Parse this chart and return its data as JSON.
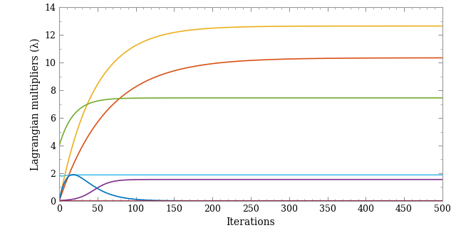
{
  "xlabel": "Iterations",
  "ylabel": "Lagrangian multipliers (λ)",
  "xlim": [
    0,
    500
  ],
  "ylim": [
    0,
    14
  ],
  "yticks": [
    0,
    2,
    4,
    6,
    8,
    10,
    12,
    14
  ],
  "xticks": [
    0,
    50,
    100,
    150,
    200,
    250,
    300,
    350,
    400,
    450,
    500
  ],
  "curves": [
    {
      "name": "yellow",
      "color": "#EDB120",
      "final_value": 12.65,
      "rise_speed": 0.022
    },
    {
      "name": "red_orange",
      "color": "#D95319",
      "final_value": 10.35,
      "rise_speed": 0.016
    },
    {
      "name": "green",
      "color": "#77AC30",
      "final_value": 7.45,
      "rise_speed": 0.055,
      "start_value": 4.0
    },
    {
      "name": "cyan",
      "color": "#4DBEEE",
      "final_value": 1.88,
      "rise_speed": 0.2,
      "start_value": 1.65
    },
    {
      "name": "purple",
      "color": "#7E2F8E",
      "final_value": 1.55,
      "sigmoid_midpoint": 45,
      "sigmoid_k": 0.09
    },
    {
      "name": "blue",
      "color": "#0072BD",
      "peak_value": 1.9,
      "peak_x": 18,
      "decay": 0.055
    },
    {
      "name": "dark_red",
      "color": "#A2142F",
      "value": 0.02
    }
  ],
  "background_color": "#ffffff",
  "line_width": 1.2,
  "xlabel_fontsize": 10,
  "ylabel_fontsize": 10,
  "tick_fontsize": 9
}
